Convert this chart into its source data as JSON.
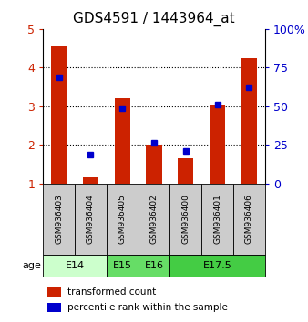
{
  "title": "GDS4591 / 1443964_at",
  "samples": [
    "GSM936403",
    "GSM936404",
    "GSM936405",
    "GSM936402",
    "GSM936400",
    "GSM936401",
    "GSM936406"
  ],
  "red_values": [
    4.55,
    1.15,
    3.2,
    2.0,
    1.65,
    3.05,
    4.25
  ],
  "blue_values": [
    3.75,
    1.75,
    2.95,
    2.05,
    1.85,
    3.05,
    3.5
  ],
  "ylim": [
    1,
    5
  ],
  "yticks": [
    1,
    2,
    3,
    4,
    5
  ],
  "ytick_labels_left": [
    "1",
    "2",
    "3",
    "4",
    "5"
  ],
  "ytick_labels_right": [
    "0",
    "25",
    "50",
    "75",
    "100%"
  ],
  "age_groups": [
    {
      "label": "E14",
      "start": 0,
      "end": 2,
      "color": "#ccffcc"
    },
    {
      "label": "E15",
      "start": 2,
      "end": 3,
      "color": "#66dd66"
    },
    {
      "label": "E16",
      "start": 3,
      "end": 4,
      "color": "#66dd66"
    },
    {
      "label": "E17.5",
      "start": 4,
      "end": 7,
      "color": "#44cc44"
    }
  ],
  "bar_color": "#cc2200",
  "dot_color": "#0000cc",
  "bar_width": 0.5,
  "title_fontsize": 11,
  "left_tick_color": "#cc2200",
  "right_tick_color": "#0000cc",
  "sample_box_color": "#cccccc",
  "background_color": "#ffffff"
}
